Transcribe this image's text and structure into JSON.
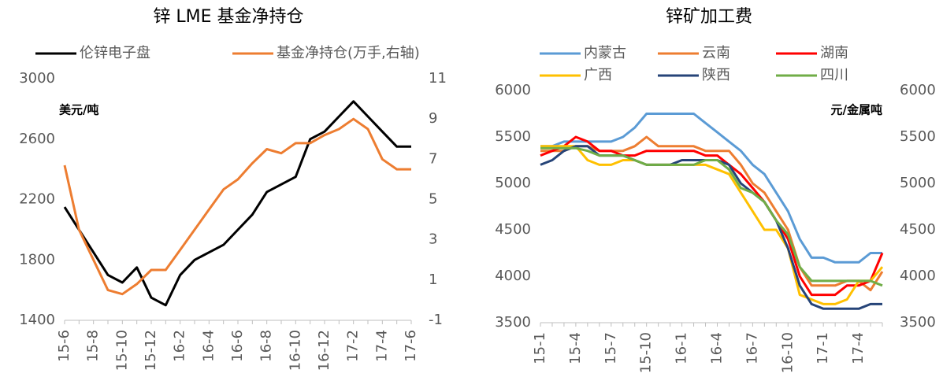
{
  "chart_data": [
    {
      "type": "line",
      "title": "锌  LME 基金净持仓",
      "annotation": "美元/吨",
      "categories": [
        "15-6",
        null,
        "15-8",
        null,
        "15-10",
        null,
        "15-12",
        null,
        "16-2",
        null,
        "16-4",
        null,
        "16-6",
        null,
        "16-8",
        null,
        "16-10",
        null,
        "16-12",
        null,
        "17-2",
        null,
        "17-4",
        null,
        "17-6"
      ],
      "series": [
        {
          "name": "伦锌电子盘",
          "color": "#000000",
          "values": [
            2150,
            2000,
            1850,
            1700,
            1650,
            1750,
            1550,
            1500,
            1700,
            1800,
            1850,
            1900,
            2000,
            2100,
            2250,
            2300,
            2350,
            2600,
            2650,
            2750,
            2850,
            2750,
            2650,
            2550,
            2550
          ]
        },
        {
          "name": "基金净持仓(万手,右轴)",
          "color": "#ed7d31",
          "axis": "y2",
          "values": [
            6.7,
            3.5,
            2,
            0.5,
            0.3,
            0.8,
            1.5,
            1.5,
            2.5,
            3.5,
            4.5,
            5.5,
            6,
            6.8,
            7.5,
            7.3,
            7.8,
            7.8,
            8.2,
            8.5,
            9,
            8.5,
            7,
            6.5,
            6.5
          ]
        }
      ],
      "ylim": [
        1400,
        3000
      ],
      "yticks": [
        1400,
        1800,
        2200,
        2600,
        3000
      ],
      "y2lim": [
        -1,
        11
      ],
      "y2ticks": [
        -1,
        1,
        3,
        5,
        7,
        9,
        11
      ],
      "legend": "top"
    },
    {
      "type": "line",
      "title": "锌矿加工费",
      "annotation": "元/金属吨",
      "categories": [
        "15-1",
        null,
        null,
        "15-4",
        null,
        null,
        "15-7",
        null,
        null,
        "15-10",
        null,
        null,
        "16-1",
        null,
        null,
        "16-4",
        null,
        null,
        "16-7",
        null,
        null,
        "16-10",
        null,
        null,
        "17-1",
        null,
        null,
        "17-4",
        null,
        null
      ],
      "series": [
        {
          "name": "内蒙古",
          "color": "#5b9bd5",
          "values": [
            5400,
            5400,
            5450,
            5450,
            5450,
            5450,
            5450,
            5500,
            5600,
            5750,
            5750,
            5750,
            5750,
            5750,
            5650,
            5550,
            5450,
            5350,
            5200,
            5100,
            4900,
            4700,
            4400,
            4200,
            4200,
            4150,
            4150,
            4150,
            4250,
            4250
          ]
        },
        {
          "name": "云南",
          "color": "#ed7d31",
          "values": [
            5350,
            5350,
            5350,
            5400,
            5400,
            5350,
            5350,
            5350,
            5400,
            5500,
            5400,
            5400,
            5400,
            5400,
            5350,
            5350,
            5350,
            5200,
            5000,
            4900,
            4700,
            4500,
            4100,
            3900,
            3900,
            3900,
            3950,
            3950,
            3850,
            4050
          ]
        },
        {
          "name": "湖南",
          "color": "#ff0000",
          "values": [
            5300,
            5350,
            5400,
            5500,
            5450,
            5350,
            5350,
            5300,
            5300,
            5350,
            5350,
            5350,
            5350,
            5350,
            5300,
            5300,
            5200,
            5100,
            4950,
            4800,
            4600,
            4400,
            4000,
            3800,
            3800,
            3800,
            3900,
            3900,
            3950,
            4250
          ]
        },
        {
          "name": "广西",
          "color": "#ffc000",
          "values": [
            5400,
            5400,
            5400,
            5400,
            5250,
            5200,
            5200,
            5250,
            5250,
            5200,
            5200,
            5200,
            5200,
            5200,
            5200,
            5150,
            5100,
            4900,
            4700,
            4500,
            4500,
            4300,
            3800,
            3750,
            3700,
            3700,
            3750,
            3950,
            3950,
            4100
          ]
        },
        {
          "name": "陕西",
          "color": "#264478",
          "values": [
            5200,
            5250,
            5350,
            5400,
            5400,
            5300,
            5300,
            5300,
            5250,
            5200,
            5200,
            5200,
            5250,
            5250,
            5250,
            5250,
            5200,
            5000,
            4900,
            4800,
            4600,
            4300,
            3900,
            3700,
            3650,
            3650,
            3650,
            3650,
            3700,
            3700
          ]
        },
        {
          "name": "四川",
          "color": "#70ad47",
          "values": [
            5380,
            5380,
            5380,
            5380,
            5350,
            5300,
            5300,
            5300,
            5250,
            5200,
            5200,
            5200,
            5200,
            5200,
            5250,
            5250,
            5150,
            4950,
            4900,
            4800,
            4600,
            4450,
            4100,
            3950,
            3950,
            3950,
            3950,
            3950,
            3950,
            3900
          ]
        }
      ],
      "ylim": [
        3500,
        6000
      ],
      "yticks": [
        3500,
        4000,
        4500,
        5000,
        5500,
        6000
      ],
      "y2lim": [
        3500,
        6000
      ],
      "y2ticks": [
        3500,
        4000,
        4500,
        5000,
        5500,
        6000
      ],
      "legend": "top"
    }
  ]
}
